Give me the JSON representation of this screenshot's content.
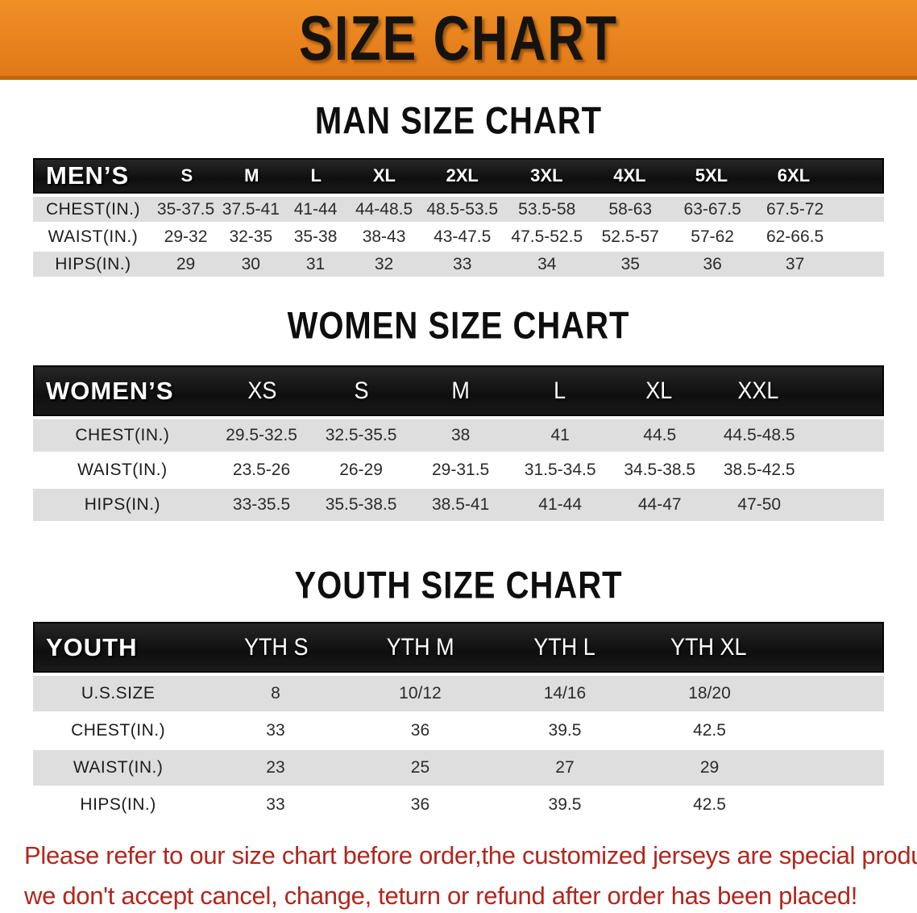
{
  "banner": {
    "title": "SIZE CHART"
  },
  "colors": {
    "banner_bg": "#E8821E",
    "banner_border": "#BC6A12",
    "table_header_bg": "#141414",
    "table_header_text": "#FFFFFF",
    "stripe_row_bg": "#DEDEDE",
    "body_text": "#2B2B2B",
    "disclaimer_text": "#B1261D"
  },
  "sections": {
    "men": {
      "heading": "MAN SIZE CHART",
      "table": {
        "header_label": "MEN’S",
        "sizes": [
          "S",
          "M",
          "L",
          "XL",
          "2XL",
          "3XL",
          "4XL",
          "5XL",
          "6XL"
        ],
        "rows": [
          {
            "label": "CHEST(IN.)",
            "values": [
              "35-37.5",
              "37.5-41",
              "41-44",
              "44-48.5",
              "48.5-53.5",
              "53.5-58",
              "58-63",
              "63-67.5",
              "67.5-72"
            ]
          },
          {
            "label": "WAIST(IN.)",
            "values": [
              "29-32",
              "32-35",
              "35-38",
              "38-43",
              "43-47.5",
              "47.5-52.5",
              "52.5-57",
              "57-62",
              "62-66.5"
            ]
          },
          {
            "label": "HIPS(IN.)",
            "values": [
              "29",
              "30",
              "31",
              "32",
              "33",
              "34",
              "35",
              "36",
              "37"
            ]
          }
        ]
      }
    },
    "women": {
      "heading": "WOMEN SIZE CHART",
      "table": {
        "header_label": "WOMEN’S",
        "sizes": [
          "XS",
          "S",
          "M",
          "L",
          "XL",
          "XXL"
        ],
        "rows": [
          {
            "label": "CHEST(IN.)",
            "values": [
              "29.5-32.5",
              "32.5-35.5",
              "38",
              "41",
              "44.5",
              "44.5-48.5"
            ]
          },
          {
            "label": "WAIST(IN.)",
            "values": [
              "23.5-26",
              "26-29",
              "29-31.5",
              "31.5-34.5",
              "34.5-38.5",
              "38.5-42.5"
            ]
          },
          {
            "label": "HIPS(IN.)",
            "values": [
              "33-35.5",
              "35.5-38.5",
              "38.5-41",
              "41-44",
              "44-47",
              "47-50"
            ]
          }
        ]
      }
    },
    "youth": {
      "heading": "YOUTH SIZE CHART",
      "table": {
        "header_label": "YOUTH",
        "sizes": [
          "YTH S",
          "YTH M",
          "YTH L",
          "YTH XL"
        ],
        "rows": [
          {
            "label": "U.S.SIZE",
            "values": [
              "8",
              "10/12",
              "14/16",
              "18/20"
            ]
          },
          {
            "label": "CHEST(IN.)",
            "values": [
              "33",
              "36",
              "39.5",
              "42.5"
            ]
          },
          {
            "label": "WAIST(IN.)",
            "values": [
              "23",
              "25",
              "27",
              "29"
            ]
          },
          {
            "label": "HIPS(IN.)",
            "values": [
              "33",
              "36",
              "39.5",
              "42.5"
            ]
          }
        ]
      }
    }
  },
  "disclaimer": {
    "line1": "Please refer to our size chart before order,the customized jerseys are special products,",
    "line2": "we don't accept cancel, change, teturn or refund after order has been placed!"
  }
}
